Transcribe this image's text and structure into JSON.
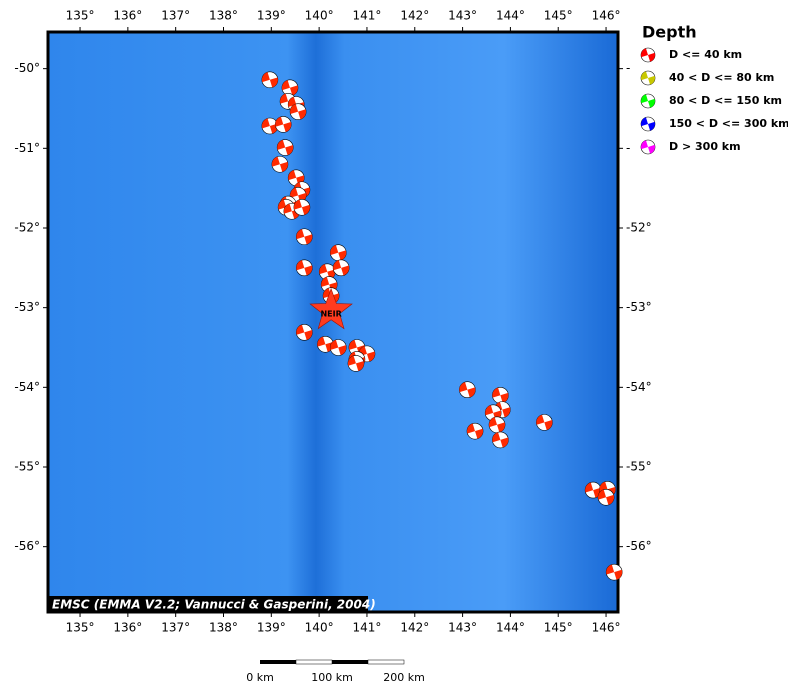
{
  "map": {
    "xlim": [
      134.33,
      146.25
    ],
    "ylim": [
      -56.82,
      -49.54
    ],
    "xticks": [
      {
        "value": 135,
        "label": "135°"
      },
      {
        "value": 136,
        "label": "136°"
      },
      {
        "value": 137,
        "label": "137°"
      },
      {
        "value": 138,
        "label": "138°"
      },
      {
        "value": 139,
        "label": "139°"
      },
      {
        "value": 140,
        "label": "140°"
      },
      {
        "value": 141,
        "label": "141°"
      },
      {
        "value": 142,
        "label": "142°"
      },
      {
        "value": 143,
        "label": "143°"
      },
      {
        "value": 144,
        "label": "144°"
      },
      {
        "value": 145,
        "label": "145°"
      },
      {
        "value": 146,
        "label": "146°"
      }
    ],
    "yticks": [
      {
        "value": -50,
        "label": "-50°"
      },
      {
        "value": -51,
        "label": "-51°"
      },
      {
        "value": -52,
        "label": "-52°"
      },
      {
        "value": -53,
        "label": "-53°"
      },
      {
        "value": -54,
        "label": "-54°"
      },
      {
        "value": -55,
        "label": "-55°"
      },
      {
        "value": -56,
        "label": "-56°"
      }
    ],
    "events": {
      "color": "#ff2a00",
      "lon": [
        138.97,
        139.39,
        139.35,
        139.52,
        139.56,
        138.97,
        139.25,
        139.29,
        139.18,
        139.52,
        139.64,
        139.56,
        139.35,
        139.31,
        139.43,
        139.64,
        139.69,
        140.4,
        139.69,
        140.17,
        140.46,
        140.21,
        140.25,
        139.69,
        140.13,
        140.4,
        140.79,
        141.0,
        140.79,
        140.77,
        143.1,
        143.79,
        143.83,
        143.64,
        143.72,
        143.79,
        143.26,
        144.71,
        145.73,
        146.03,
        146.0,
        146.17
      ],
      "lat": [
        -50.14,
        -50.24,
        -50.41,
        -50.45,
        -50.54,
        -50.72,
        -50.7,
        -50.99,
        -51.2,
        -51.37,
        -51.52,
        -51.59,
        -51.7,
        -51.74,
        -51.79,
        -51.74,
        -52.11,
        -52.31,
        -52.5,
        -52.55,
        -52.5,
        -52.71,
        -52.85,
        -53.31,
        -53.46,
        -53.5,
        -53.5,
        -53.58,
        -53.65,
        -53.7,
        -54.03,
        -54.1,
        -54.28,
        -54.32,
        -54.47,
        -54.66,
        -54.55,
        -54.44,
        -55.29,
        -55.28,
        -55.38,
        -56.32
      ]
    },
    "station": {
      "label": "NEIR",
      "lon": 140.25,
      "lat": -53.04,
      "color": "#ff3b1f"
    },
    "credit": "EMSC (EMMA V2.2; Vannucci & Gasperini, 2004)",
    "legend": {
      "title": "Depth",
      "items": [
        {
          "label": "D <= 40 km",
          "color": "#ff0000"
        },
        {
          "label": "40 < D <= 80 km",
          "color": "#c8c800"
        },
        {
          "label": "80 < D <= 150 km",
          "color": "#00ff00"
        },
        {
          "label": "150 < D <= 300 km",
          "color": "#0000ff"
        },
        {
          "label": "D > 300 km",
          "color": "#ff00ff"
        }
      ]
    },
    "scalebar": {
      "labels": [
        "0 km",
        "100 km",
        "200 km"
      ]
    }
  }
}
